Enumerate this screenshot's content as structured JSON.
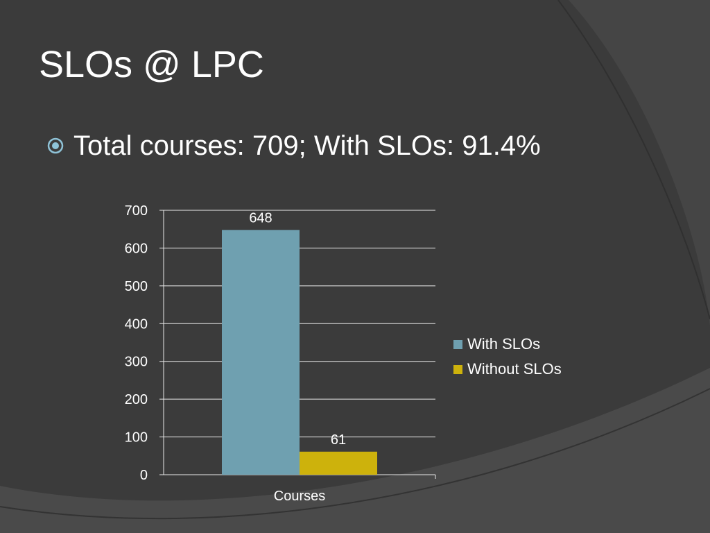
{
  "slide": {
    "title": "SLOs @ LPC",
    "bullet": "Total courses: 709; With SLOs: 91.4%",
    "bullet_icon": "circled-dot-icon",
    "colors": {
      "background": "#3b3b3b",
      "accent_swirl": "#2e2e2e",
      "bullet_icon": "#8fc3d8"
    }
  },
  "chart_data": {
    "type": "bar",
    "categories": [
      "Courses"
    ],
    "series": [
      {
        "name": "With SLOs",
        "values": [
          648
        ],
        "color": "#6fa0b0"
      },
      {
        "name": "Without SLOs",
        "values": [
          61
        ],
        "color": "#cdb20c"
      }
    ],
    "ylim": [
      0,
      700
    ],
    "yticks": [
      "0",
      "100",
      "200",
      "300",
      "400",
      "500",
      "600",
      "700"
    ],
    "data_labels": [
      "648",
      "61"
    ],
    "grid": true,
    "legend_position": "right"
  }
}
